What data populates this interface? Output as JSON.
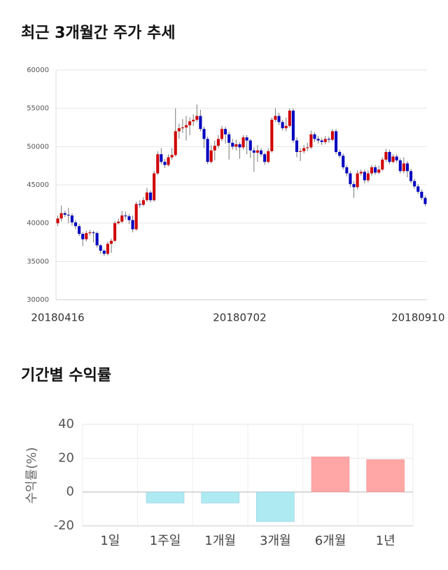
{
  "chart_data": [
    {
      "type": "candlestick",
      "title": "최근 3개월간 주가 추세",
      "categories": [
        "20180416",
        null,
        null,
        null,
        null,
        null,
        null,
        null,
        null,
        null,
        null,
        null,
        null,
        null,
        null,
        null,
        null,
        null,
        null,
        null,
        null,
        null,
        null,
        null,
        null,
        null,
        null,
        null,
        null,
        null,
        null,
        null,
        null,
        null,
        null,
        null,
        null,
        null,
        null,
        null,
        null,
        null,
        null,
        null,
        null,
        null,
        null,
        null,
        null,
        null,
        null,
        "20180702",
        null,
        null,
        null,
        null,
        null,
        null,
        null,
        null,
        null,
        null,
        null,
        null,
        null,
        null,
        null,
        null,
        null,
        null,
        null,
        null,
        null,
        null,
        null,
        null,
        null,
        null,
        null,
        null,
        null,
        null,
        null,
        null,
        null,
        null,
        null,
        null,
        null,
        null,
        null,
        null,
        null,
        null,
        null,
        null,
        null,
        null,
        null,
        null,
        null,
        "20180910",
        null,
        null
      ],
      "open": [
        40000,
        40600,
        41300,
        41100,
        41000,
        40100,
        39600,
        38600,
        37900,
        38700,
        38800,
        38700,
        37100,
        36400,
        36000,
        37300,
        37700,
        40000,
        40200,
        41000,
        40900,
        40400,
        39200,
        42500,
        42400,
        43000,
        44000,
        43000,
        46500,
        49000,
        48000,
        47600,
        48600,
        48900,
        52000,
        52400,
        52500,
        52800,
        53300,
        53500,
        54000,
        52300,
        51000,
        48000,
        49500,
        50100,
        51000,
        52300,
        51600,
        50500,
        50000,
        50300,
        49900,
        51200,
        50800,
        49500,
        49200,
        49500,
        49000,
        48000,
        49400,
        53500,
        54000,
        53200,
        52400,
        52700,
        54700,
        50800,
        49300,
        49400,
        49800,
        49900,
        51600,
        51000,
        50800,
        50600,
        51000,
        50900,
        52000,
        49300,
        48800,
        47300,
        46500,
        45100,
        44700,
        46500,
        46700,
        45600,
        46500,
        47300,
        46600,
        47000,
        48300,
        49300,
        48000,
        48700,
        48200,
        46800,
        47800,
        46800,
        45500,
        44800,
        44100,
        43300
      ],
      "high": [
        41000,
        42300,
        41600,
        42000,
        41300,
        40400,
        39900,
        38800,
        39000,
        39100,
        39000,
        38900,
        37300,
        36600,
        37600,
        38000,
        40300,
        40600,
        41600,
        41500,
        41200,
        41000,
        42800,
        43000,
        43400,
        44600,
        44300,
        46800,
        49400,
        49800,
        48400,
        49000,
        49800,
        55000,
        53000,
        53600,
        54000,
        53800,
        54200,
        55500,
        54800,
        52600,
        51300,
        50200,
        50800,
        51500,
        52700,
        52600,
        52000,
        51000,
        50900,
        50600,
        51500,
        51500,
        51000,
        49900,
        50200,
        49800,
        49200,
        49800,
        53800,
        55000,
        54400,
        53500,
        53800,
        55000,
        55000,
        51200,
        49800,
        50200,
        50500,
        52100,
        51900,
        51400,
        51100,
        51400,
        51300,
        52300,
        52300,
        49600,
        49100,
        47600,
        46800,
        45500,
        46900,
        47000,
        47000,
        46900,
        47600,
        47600,
        47500,
        48600,
        49700,
        49600,
        49000,
        49000,
        48500,
        48600,
        48100,
        47100,
        45800,
        45100,
        44400,
        43600
      ],
      "low": [
        39600,
        40200,
        40800,
        40000,
        39700,
        39200,
        38300,
        37000,
        37600,
        38400,
        37500,
        36800,
        36000,
        35700,
        35800,
        36100,
        37500,
        39800,
        40000,
        40500,
        39900,
        38800,
        39000,
        42000,
        42200,
        42800,
        42700,
        42800,
        46300,
        47700,
        47200,
        47400,
        48300,
        48700,
        51000,
        51800,
        50800,
        51500,
        52700,
        53200,
        52000,
        49800,
        47700,
        47800,
        48200,
        49800,
        50700,
        50400,
        48300,
        49600,
        49500,
        48400,
        49600,
        49000,
        48500,
        46700,
        48000,
        48700,
        47600,
        47800,
        49200,
        53200,
        52800,
        52100,
        52000,
        52500,
        50500,
        48600,
        48100,
        49100,
        49400,
        49700,
        50600,
        50400,
        50200,
        50300,
        50500,
        50700,
        49000,
        48500,
        47000,
        46100,
        44700,
        43300,
        44400,
        46200,
        45200,
        45300,
        46200,
        46300,
        46400,
        46800,
        48000,
        47700,
        47800,
        47900,
        46500,
        46500,
        46000,
        45200,
        44500,
        43800,
        43000,
        42200
      ],
      "close": [
        40600,
        41300,
        41100,
        41000,
        40100,
        39600,
        38600,
        37900,
        38700,
        38800,
        38700,
        37100,
        36400,
        36000,
        37300,
        37700,
        40000,
        40200,
        41000,
        40900,
        40400,
        39200,
        42500,
        42400,
        43000,
        44000,
        43000,
        46500,
        49000,
        48000,
        47600,
        48600,
        48900,
        52000,
        52400,
        52500,
        52800,
        53300,
        53500,
        54000,
        52300,
        51000,
        48000,
        49500,
        50100,
        51000,
        52300,
        51600,
        50500,
        50000,
        50300,
        49900,
        51200,
        50800,
        49500,
        49200,
        49500,
        49000,
        48000,
        49400,
        53500,
        54000,
        53200,
        52400,
        52700,
        54700,
        50800,
        49300,
        49400,
        49800,
        49900,
        51600,
        51000,
        50800,
        50600,
        51000,
        50900,
        52000,
        49300,
        48800,
        47300,
        46500,
        45100,
        44700,
        46500,
        46700,
        45600,
        46500,
        47300,
        46600,
        47000,
        48300,
        49300,
        48000,
        48700,
        48200,
        46800,
        47800,
        46800,
        45500,
        44800,
        44100,
        43300,
        42500
      ],
      "up_color": "#d00000",
      "down_color": "#0000c0",
      "ylim": [
        30000,
        60000
      ],
      "yticks": [
        30000,
        35000,
        40000,
        45000,
        50000,
        55000,
        60000
      ],
      "grid": true
    },
    {
      "type": "bar",
      "title": "기간별 수익률",
      "ylabel": "수익률(%)",
      "categories": [
        "1일",
        "1주일",
        "1개월",
        "3개월",
        "6개월",
        "1년"
      ],
      "values": [
        0,
        -6.5,
        -6.5,
        -17.5,
        20.8,
        19.2
      ],
      "positive_color": "#ffa6a6",
      "negative_color": "#aeeaf2",
      "ylim": [
        -20,
        40
      ],
      "yticks": [
        -20,
        0,
        20,
        40
      ],
      "grid": true
    }
  ]
}
